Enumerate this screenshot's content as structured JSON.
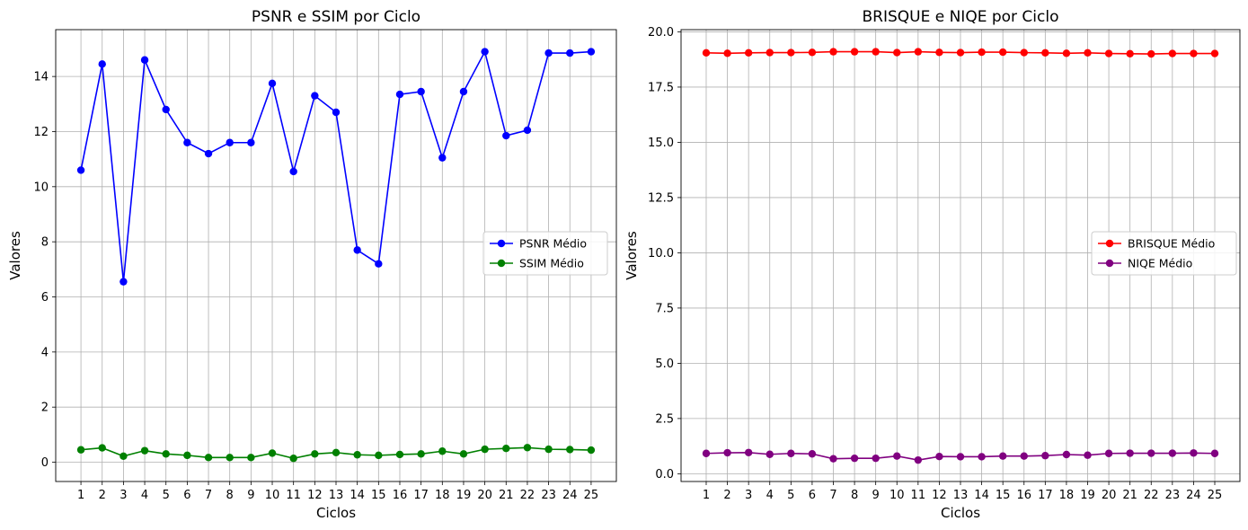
{
  "chart_data": [
    {
      "type": "line",
      "title": "PSNR e SSIM por Ciclo",
      "xlabel": "Ciclos",
      "ylabel": "Valores",
      "categories": [
        "1",
        "2",
        "3",
        "4",
        "5",
        "6",
        "7",
        "8",
        "9",
        "10",
        "11",
        "12",
        "13",
        "14",
        "15",
        "16",
        "17",
        "18",
        "19",
        "20",
        "21",
        "22",
        "23",
        "24",
        "25"
      ],
      "ylim": [
        -0.7,
        15.7
      ],
      "yticks": [
        0,
        2,
        4,
        6,
        8,
        10,
        12,
        14
      ],
      "grid": true,
      "legend": "center-right",
      "series": [
        {
          "name": "PSNR Médio",
          "color": "#0000ff",
          "values": [
            10.6,
            14.45,
            6.55,
            14.6,
            12.8,
            11.6,
            11.2,
            11.6,
            11.6,
            13.75,
            10.55,
            13.3,
            12.7,
            7.7,
            7.2,
            13.35,
            13.45,
            11.05,
            13.45,
            14.9,
            11.85,
            12.05,
            14.85,
            14.85,
            14.9
          ]
        },
        {
          "name": "SSIM Médio",
          "color": "#008000",
          "values": [
            0.45,
            0.52,
            0.22,
            0.42,
            0.3,
            0.25,
            0.17,
            0.17,
            0.17,
            0.33,
            0.14,
            0.3,
            0.35,
            0.27,
            0.25,
            0.28,
            0.3,
            0.4,
            0.3,
            0.47,
            0.5,
            0.53,
            0.47,
            0.46,
            0.44
          ]
        }
      ]
    },
    {
      "type": "line",
      "title": "BRISQUE e NIQE por Ciclo",
      "xlabel": "Ciclos",
      "ylabel": "Valores",
      "categories": [
        "1",
        "2",
        "3",
        "4",
        "5",
        "6",
        "7",
        "8",
        "9",
        "10",
        "11",
        "12",
        "13",
        "14",
        "15",
        "16",
        "17",
        "18",
        "19",
        "20",
        "21",
        "22",
        "23",
        "24",
        "25"
      ],
      "ylim": [
        -0.35,
        20.1
      ],
      "yticks": [
        0.0,
        2.5,
        5.0,
        7.5,
        10.0,
        12.5,
        15.0,
        17.5,
        20.0
      ],
      "grid": true,
      "legend": "center-right",
      "series": [
        {
          "name": "BRISQUE Médio",
          "color": "#ff0000",
          "values": [
            19.05,
            19.03,
            19.05,
            19.06,
            19.06,
            19.07,
            19.1,
            19.1,
            19.1,
            19.06,
            19.1,
            19.07,
            19.06,
            19.08,
            19.08,
            19.06,
            19.05,
            19.03,
            19.05,
            19.02,
            19.01,
            19.0,
            19.02,
            19.02,
            19.02
          ]
        },
        {
          "name": "NIQE Médio",
          "color": "#800080",
          "values": [
            0.92,
            0.95,
            0.96,
            0.88,
            0.92,
            0.9,
            0.68,
            0.7,
            0.7,
            0.8,
            0.62,
            0.78,
            0.77,
            0.77,
            0.8,
            0.8,
            0.82,
            0.87,
            0.84,
            0.92,
            0.93,
            0.93,
            0.93,
            0.94,
            0.92
          ]
        }
      ]
    }
  ]
}
